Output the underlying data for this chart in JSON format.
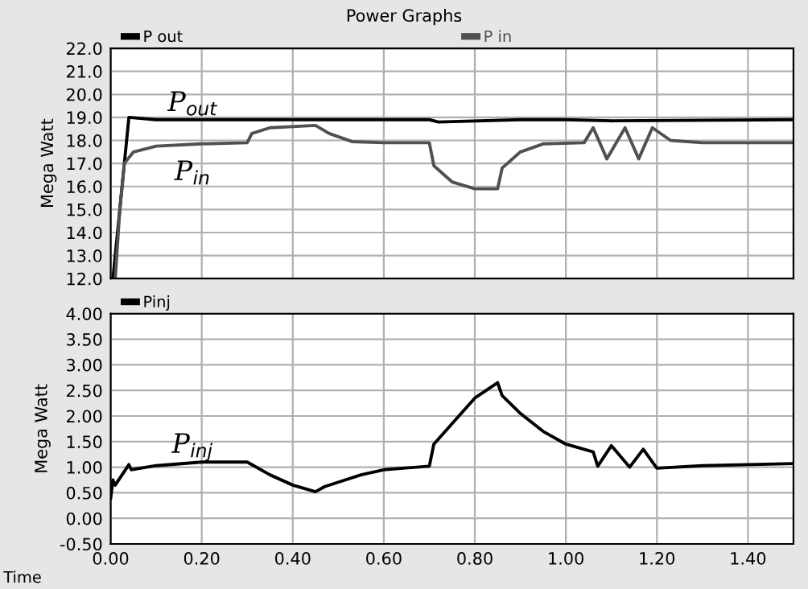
{
  "chart_data": [
    {
      "type": "line",
      "title": "Power Graphs",
      "ylabel": "Mega Watt",
      "xlim": [
        0,
        1.5
      ],
      "ylim": [
        12,
        22
      ],
      "xticks": [
        0,
        0.2,
        0.4,
        0.6,
        0.8,
        1.0,
        1.2,
        1.4
      ],
      "yticks": [
        {
          "value": 12,
          "label": "12.0"
        },
        {
          "value": 13,
          "label": "13.0"
        },
        {
          "value": 14,
          "label": "14.0"
        },
        {
          "value": 15,
          "label": "15.0"
        },
        {
          "value": 16,
          "label": "16.0"
        },
        {
          "value": 17,
          "label": "17.0"
        },
        {
          "value": 18,
          "label": "18.0"
        },
        {
          "value": 19,
          "label": "19.0"
        },
        {
          "value": 20,
          "label": "20.0"
        },
        {
          "value": 21,
          "label": "21.0"
        },
        {
          "value": 22,
          "label": "22.0"
        }
      ],
      "tick_labels": "y",
      "grid": true,
      "legend": "top",
      "series": [
        {
          "name": "P out",
          "color": "#000000",
          "x": [
            0.005,
            0.04,
            0.1,
            0.5,
            0.7,
            0.72,
            0.9,
            1.0,
            1.1,
            1.5
          ],
          "values": [
            12,
            19,
            18.9,
            18.9,
            18.9,
            18.8,
            18.9,
            18.9,
            18.85,
            18.9
          ]
        },
        {
          "name": "P in",
          "color": "#505050",
          "x": [
            0.01,
            0.02,
            0.03,
            0.05,
            0.1,
            0.2,
            0.3,
            0.31,
            0.35,
            0.45,
            0.48,
            0.53,
            0.6,
            0.7,
            0.71,
            0.75,
            0.8,
            0.85,
            0.86,
            0.9,
            0.95,
            1.04,
            1.06,
            1.09,
            1.13,
            1.16,
            1.19,
            1.23,
            1.3,
            1.5
          ],
          "values": [
            12,
            15,
            17,
            17.5,
            17.75,
            17.85,
            17.9,
            18.3,
            18.55,
            18.65,
            18.3,
            17.95,
            17.9,
            17.9,
            16.9,
            16.2,
            15.9,
            15.9,
            16.8,
            17.5,
            17.85,
            17.9,
            18.55,
            17.2,
            18.55,
            17.2,
            18.55,
            18.0,
            17.9,
            17.9
          ]
        }
      ],
      "annotations": [
        "P$_{out}$",
        "P$_{in}$"
      ]
    },
    {
      "type": "line",
      "xlabel": "Time",
      "ylabel": "Mega Watt",
      "xlim": [
        0,
        1.5
      ],
      "ylim": [
        -0.5,
        4.0
      ],
      "xticks": [
        {
          "value": 0,
          "label": "0.00"
        },
        {
          "value": 0.2,
          "label": "0.20"
        },
        {
          "value": 0.4,
          "label": "0.40"
        },
        {
          "value": 0.6,
          "label": "0.60"
        },
        {
          "value": 0.8,
          "label": "0.80"
        },
        {
          "value": 1.0,
          "label": "1.00"
        },
        {
          "value": 1.2,
          "label": "1.20"
        },
        {
          "value": 1.4,
          "label": "1.40"
        }
      ],
      "yticks": [
        {
          "value": -0.5,
          "label": "-0.50"
        },
        {
          "value": 0,
          "label": "0.00"
        },
        {
          "value": 0.5,
          "label": "0.50"
        },
        {
          "value": 1.0,
          "label": "1.00"
        },
        {
          "value": 1.5,
          "label": "1.50"
        },
        {
          "value": 2.0,
          "label": "2.00"
        },
        {
          "value": 2.5,
          "label": "2.50"
        },
        {
          "value": 3.0,
          "label": "3.00"
        },
        {
          "value": 3.5,
          "label": "3.50"
        },
        {
          "value": 4.0,
          "label": "4.00"
        }
      ],
      "grid": true,
      "legend": "top",
      "series": [
        {
          "name": "Pinj",
          "color": "#000000",
          "x": [
            0,
            0.005,
            0.01,
            0.04,
            0.045,
            0.1,
            0.2,
            0.3,
            0.35,
            0.4,
            0.45,
            0.47,
            0.55,
            0.6,
            0.7,
            0.71,
            0.75,
            0.8,
            0.85,
            0.86,
            0.9,
            0.95,
            1.0,
            1.06,
            1.07,
            1.1,
            1.14,
            1.17,
            1.2,
            1.3,
            1.5
          ],
          "values": [
            0.4,
            0.75,
            0.65,
            1.05,
            0.95,
            1.03,
            1.1,
            1.1,
            0.85,
            0.65,
            0.52,
            0.62,
            0.85,
            0.95,
            1.02,
            1.45,
            1.85,
            2.35,
            2.65,
            2.4,
            2.05,
            1.7,
            1.45,
            1.3,
            1.02,
            1.42,
            1.0,
            1.35,
            0.98,
            1.03,
            1.07
          ]
        }
      ],
      "annotations": [
        "P$_{inj}$"
      ]
    }
  ]
}
